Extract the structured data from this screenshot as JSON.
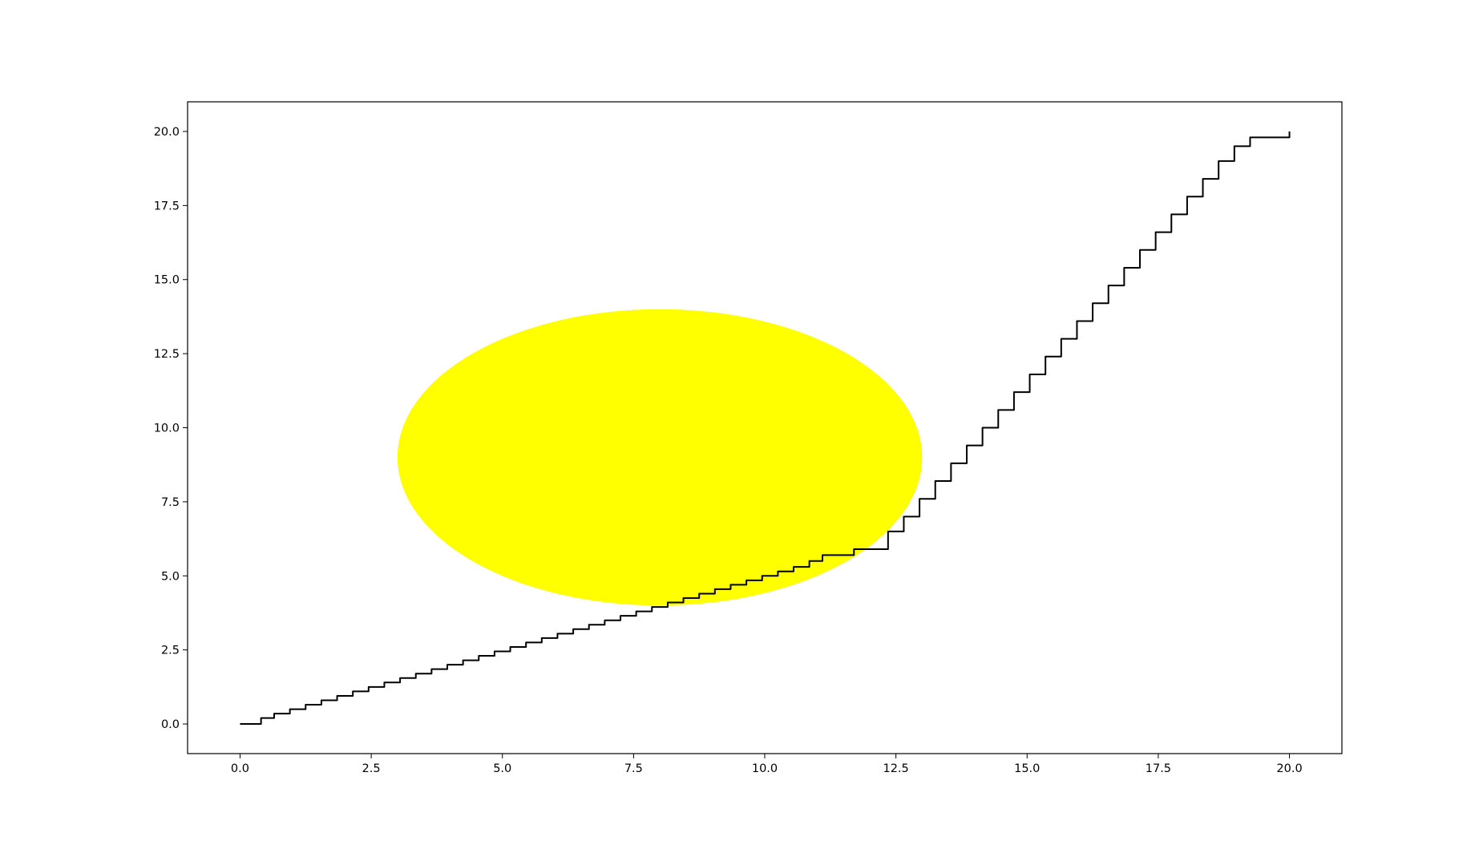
{
  "chart_data": {
    "type": "line",
    "title": "",
    "xlabel": "",
    "ylabel": "",
    "xlim": [
      -1,
      21
    ],
    "ylim": [
      -1,
      21
    ],
    "x_ticks": [
      0.0,
      2.5,
      5.0,
      7.5,
      10.0,
      12.5,
      15.0,
      17.5,
      20.0
    ],
    "x_tick_labels": [
      "0.0",
      "2.5",
      "5.0",
      "7.5",
      "10.0",
      "12.5",
      "15.0",
      "17.5",
      "20.0"
    ],
    "y_ticks": [
      0.0,
      2.5,
      5.0,
      7.5,
      10.0,
      12.5,
      15.0,
      17.5,
      20.0
    ],
    "y_tick_labels": [
      "0.0",
      "2.5",
      "5.0",
      "7.5",
      "10.0",
      "12.5",
      "15.0",
      "17.5",
      "20.0"
    ],
    "grid": false,
    "legend": null,
    "ellipse": {
      "center": [
        8,
        9
      ],
      "width": 10,
      "height": 10,
      "color": "#ffff00"
    },
    "series": [
      {
        "color": "#000000",
        "x": [
          0.0,
          0.3,
          0.5,
          0.8,
          1.1,
          1.4,
          1.7,
          2.0,
          2.3,
          2.6,
          2.9,
          3.2,
          3.5,
          3.8,
          4.1,
          4.4,
          4.7,
          5.0,
          5.3,
          5.6,
          5.9,
          6.2,
          6.5,
          6.8,
          7.1,
          7.4,
          7.7,
          8.0,
          8.3,
          8.6,
          8.9,
          9.2,
          9.5,
          9.8,
          10.1,
          10.4,
          10.7,
          11.0,
          11.2,
          12.2,
          12.5,
          12.8,
          13.1,
          13.4,
          13.7,
          14.0,
          14.3,
          14.6,
          14.9,
          15.2,
          15.5,
          15.8,
          16.1,
          16.4,
          16.7,
          17.0,
          17.3,
          17.6,
          17.9,
          18.2,
          18.5,
          18.8,
          19.1,
          19.4,
          19.7,
          20.0,
          20.0
        ],
        "y": [
          0.0,
          0.0,
          0.2,
          0.35,
          0.5,
          0.65,
          0.8,
          0.95,
          1.1,
          1.25,
          1.4,
          1.55,
          1.7,
          1.85,
          2.0,
          2.15,
          2.3,
          2.45,
          2.6,
          2.75,
          2.9,
          3.05,
          3.2,
          3.35,
          3.5,
          3.65,
          3.8,
          3.95,
          4.1,
          4.25,
          4.4,
          4.55,
          4.7,
          4.85,
          5.0,
          5.15,
          5.3,
          5.5,
          5.7,
          5.9,
          6.5,
          7.0,
          7.6,
          8.2,
          8.8,
          9.4,
          10.0,
          10.6,
          11.2,
          11.8,
          12.4,
          13.0,
          13.6,
          14.2,
          14.8,
          15.4,
          16.0,
          16.6,
          17.2,
          17.8,
          18.4,
          19.0,
          19.5,
          19.8,
          19.8,
          19.8,
          20.0
        ]
      }
    ]
  }
}
